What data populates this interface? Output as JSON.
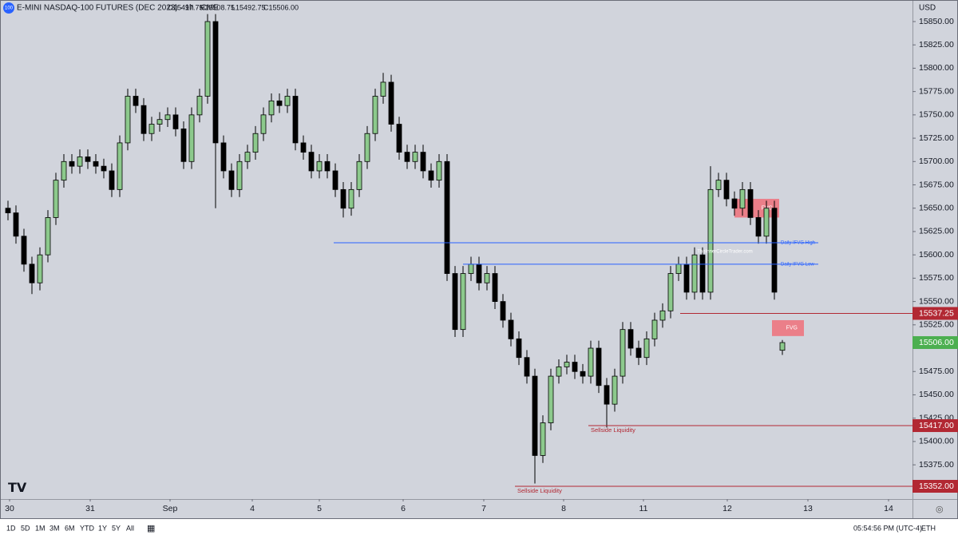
{
  "chart_data": {
    "type": "candlestick",
    "title": "E-MINI NASDAQ-100 FUTURES (DEC 2023) · 1h · CME",
    "symbol_icon": "100",
    "ohlc_legend": [
      "O15497.75",
      "H15508.75",
      "L15492.75",
      "C15506.00"
    ],
    "currency": "USD",
    "watermark": "TheInnerCircleTrader.com",
    "up_color": "#8cc98c",
    "down_color": "#000000",
    "open": [
      15650,
      15645,
      15620,
      15590,
      15570,
      15600,
      15640,
      15680,
      15700,
      15695,
      15705,
      15700,
      15695,
      15690,
      15670,
      15720,
      15770,
      15760,
      15730,
      15740,
      15745,
      15750,
      15735,
      15700,
      15750,
      15770,
      15850,
      15720,
      15690,
      15670,
      15700,
      15710,
      15730,
      15750,
      15765,
      15760,
      15770,
      15720,
      15710,
      15690,
      15700,
      15690,
      15670,
      15650,
      15670,
      15700,
      15730,
      15770,
      15785,
      15740,
      15710,
      15700,
      15710,
      15690,
      15680,
      15700,
      15580,
      15520,
      15580,
      15590,
      15570,
      15580,
      15550,
      15530,
      15510,
      15490,
      15470,
      15385,
      15420,
      15470,
      15480,
      15485,
      15475,
      15470,
      15500,
      15460,
      15440,
      15470,
      15520,
      15500,
      15490,
      15510,
      15530,
      15540,
      15580,
      15590,
      15560,
      15600,
      15560,
      15670,
      15680,
      15660,
      15650,
      15670,
      15640,
      15620,
      15650,
      15497.75
    ],
    "high": [
      15658,
      15653,
      15628,
      15598,
      15608,
      15648,
      15688,
      15708,
      15708,
      15713,
      15713,
      15708,
      15703,
      15698,
      15728,
      15778,
      15778,
      15768,
      15748,
      15753,
      15758,
      15758,
      15743,
      15758,
      15778,
      15858,
      15858,
      15728,
      15698,
      15708,
      15718,
      15738,
      15758,
      15773,
      15773,
      15778,
      15778,
      15728,
      15718,
      15708,
      15708,
      15698,
      15678,
      15678,
      15708,
      15738,
      15778,
      15795,
      15793,
      15748,
      15718,
      15718,
      15718,
      15698,
      15708,
      15708,
      15588,
      15588,
      15598,
      15598,
      15588,
      15588,
      15558,
      15538,
      15518,
      15498,
      15478,
      15428,
      15478,
      15488,
      15493,
      15493,
      15483,
      15508,
      15508,
      15468,
      15478,
      15528,
      15528,
      15508,
      15518,
      15538,
      15548,
      15588,
      15598,
      15598,
      15608,
      15608,
      15695,
      15688,
      15688,
      15668,
      15678,
      15678,
      15648,
      15658,
      15658,
      15508.75
    ],
    "low": [
      15637,
      15612,
      15582,
      15558,
      15562,
      15592,
      15632,
      15672,
      15687,
      15687,
      15692,
      15687,
      15682,
      15662,
      15662,
      15712,
      15752,
      15722,
      15722,
      15732,
      15737,
      15727,
      15692,
      15692,
      15742,
      15762,
      15650,
      15682,
      15662,
      15662,
      15692,
      15702,
      15722,
      15742,
      15752,
      15752,
      15712,
      15702,
      15682,
      15682,
      15682,
      15662,
      15640,
      15642,
      15662,
      15692,
      15722,
      15762,
      15732,
      15702,
      15692,
      15692,
      15682,
      15672,
      15672,
      15572,
      15512,
      15512,
      15572,
      15562,
      15562,
      15542,
      15522,
      15502,
      15482,
      15462,
      15355,
      15377,
      15412,
      15462,
      15472,
      15467,
      15462,
      15462,
      15452,
      15415,
      15432,
      15462,
      15492,
      15482,
      15482,
      15502,
      15522,
      15532,
      15572,
      15552,
      15552,
      15552,
      15552,
      15662,
      15652,
      15642,
      15642,
      15632,
      15612,
      15612,
      15552,
      15492.75
    ],
    "close": [
      15645,
      15620,
      15590,
      15570,
      15600,
      15640,
      15680,
      15700,
      15695,
      15705,
      15700,
      15695,
      15690,
      15670,
      15720,
      15770,
      15760,
      15730,
      15740,
      15745,
      15750,
      15735,
      15700,
      15750,
      15770,
      15850,
      15720,
      15690,
      15670,
      15700,
      15710,
      15730,
      15750,
      15765,
      15760,
      15770,
      15720,
      15710,
      15690,
      15700,
      15690,
      15670,
      15650,
      15670,
      15700,
      15730,
      15770,
      15785,
      15740,
      15710,
      15700,
      15710,
      15690,
      15680,
      15700,
      15580,
      15520,
      15580,
      15590,
      15570,
      15580,
      15550,
      15530,
      15510,
      15490,
      15470,
      15385,
      15420,
      15470,
      15480,
      15485,
      15475,
      15470,
      15500,
      15460,
      15440,
      15470,
      15520,
      15500,
      15490,
      15510,
      15530,
      15540,
      15580,
      15590,
      15560,
      15600,
      15560,
      15670,
      15680,
      15660,
      15650,
      15670,
      15640,
      15620,
      15650,
      15560,
      15506
    ],
    "last_price_label": "15506.00",
    "last_price_color": "#4caf50",
    "ylim": [
      15338.3,
      15873.1
    ],
    "yticks": [
      {
        "value": 15850,
        "label": "15850.00"
      },
      {
        "value": 15825,
        "label": "15825.00"
      },
      {
        "value": 15800,
        "label": "15800.00"
      },
      {
        "value": 15775,
        "label": "15775.00"
      },
      {
        "value": 15750,
        "label": "15750.00"
      },
      {
        "value": 15725,
        "label": "15725.00"
      },
      {
        "value": 15700,
        "label": "15700.00"
      },
      {
        "value": 15675,
        "label": "15675.00"
      },
      {
        "value": 15650,
        "label": "15650.00"
      },
      {
        "value": 15625,
        "label": "15625.00"
      },
      {
        "value": 15600,
        "label": "15600.00"
      },
      {
        "value": 15575,
        "label": "15575.00"
      },
      {
        "value": 15550,
        "label": "15550.00"
      },
      {
        "value": 15525,
        "label": "15525.00"
      },
      {
        "value": 15475,
        "label": "15475.00"
      },
      {
        "value": 15450,
        "label": "15450.00"
      },
      {
        "value": 15425,
        "label": "15425.00"
      },
      {
        "value": 15400,
        "label": "15400.00"
      },
      {
        "value": 15375,
        "label": "15375.00"
      }
    ],
    "xlim": [
      -1,
      113.3
    ],
    "xticks": [
      {
        "value": 0.2,
        "label": "30"
      },
      {
        "value": 10.3,
        "label": "31"
      },
      {
        "value": 20.3,
        "label": "Sep"
      },
      {
        "value": 30.6,
        "label": "4"
      },
      {
        "value": 39,
        "label": "5"
      },
      {
        "value": 49.5,
        "label": "6"
      },
      {
        "value": 59.6,
        "label": "7"
      },
      {
        "value": 69.6,
        "label": "8"
      },
      {
        "value": 79.6,
        "label": "11"
      },
      {
        "value": 90.1,
        "label": "12"
      },
      {
        "value": 100.2,
        "label": "13"
      },
      {
        "value": 110.3,
        "label": "14"
      }
    ],
    "grid": false,
    "levels": [
      {
        "label": "Daily IFVG High",
        "value": 15613,
        "color": "#2962ff"
      },
      {
        "label": "Daily IFVG Low",
        "value": 15590,
        "color": "#2962ff"
      },
      {
        "value": 15537.25,
        "color": "#b22833"
      },
      {
        "label": "Sellside Liquidity",
        "value": 15417,
        "value_label": "15417.00",
        "color": "#b22833"
      },
      {
        "label": "Sellside Liquidity",
        "value": 15352,
        "value_label": "15352.00",
        "color": "#b22833"
      }
    ],
    "zones": [
      {
        "label": "FVG",
        "top": 15660,
        "bottom": 15640,
        "color": "#f0707a"
      },
      {
        "label": "FVG",
        "top": 15530,
        "bottom": 15513,
        "color": "#f0707a"
      }
    ]
  },
  "toolbar": {
    "ranges": [
      "1D",
      "5D",
      "1M",
      "3M",
      "6M",
      "YTD",
      "1Y",
      "5Y",
      "All"
    ],
    "clock": "05:54:56 PM (UTC-4)",
    "session": "ETH"
  }
}
